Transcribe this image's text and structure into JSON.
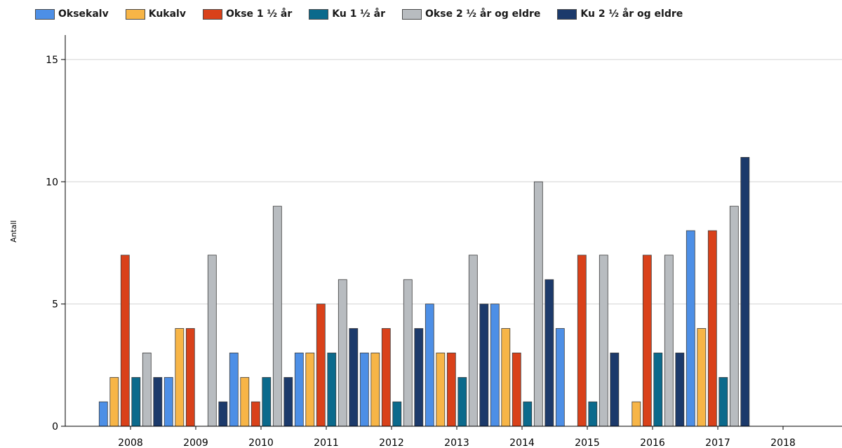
{
  "chart_data": {
    "type": "bar",
    "ylabel": "Antall",
    "ylim": [
      0,
      16
    ],
    "yticks": [
      0,
      5,
      10,
      15
    ],
    "grid": true,
    "legend_position": "top-left",
    "categories": [
      "2008",
      "2009",
      "2010",
      "2011",
      "2012",
      "2013",
      "2014",
      "2015",
      "2016",
      "2017",
      "2018"
    ],
    "series": [
      {
        "name": "Oksekalv",
        "color": "#4d8fe6",
        "values": [
          1,
          2,
          3,
          3,
          3,
          5,
          5,
          4,
          0,
          8,
          0
        ]
      },
      {
        "name": "Kukalv",
        "color": "#f7b547",
        "values": [
          2,
          4,
          2,
          3,
          3,
          3,
          4,
          0,
          1,
          4,
          0
        ]
      },
      {
        "name": "Okse 1 ½ år",
        "color": "#d9411a",
        "values": [
          7,
          4,
          1,
          5,
          4,
          3,
          3,
          7,
          7,
          8,
          0
        ]
      },
      {
        "name": "Ku 1 ½ år",
        "color": "#0b6a8c",
        "values": [
          2,
          0,
          2,
          3,
          1,
          2,
          1,
          1,
          3,
          2,
          0
        ]
      },
      {
        "name": "Okse 2 ½ år og eldre",
        "color": "#b8bcc0",
        "values": [
          3,
          7,
          9,
          6,
          6,
          7,
          10,
          7,
          7,
          9,
          0
        ]
      },
      {
        "name": "Ku 2 ½ år og eldre",
        "color": "#1c3a6b",
        "values": [
          2,
          1,
          2,
          4,
          4,
          5,
          6,
          3,
          3,
          11,
          0
        ]
      }
    ]
  }
}
